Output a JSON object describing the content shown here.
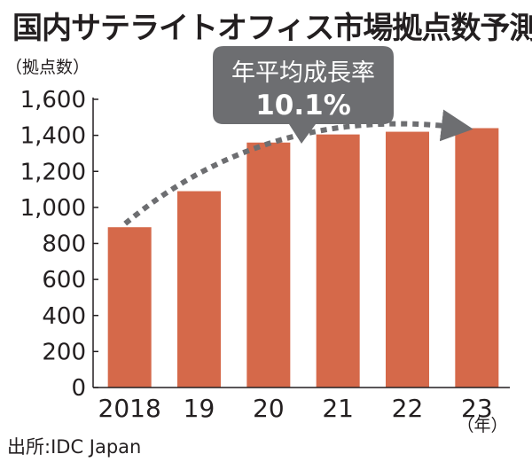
{
  "title": "国内サテライトオフィス市場拠点数予測",
  "source": "出所:IDC Japan",
  "chart_data": {
    "type": "bar",
    "title": "国内サテライトオフィス市場拠点数予測",
    "ylabel": "（拠点数）",
    "xunit": "（年）",
    "categories": [
      "2018",
      "19",
      "20",
      "21",
      "22",
      "23"
    ],
    "values": [
      890,
      1090,
      1360,
      1405,
      1420,
      1440
    ],
    "ylim": [
      0,
      1600
    ],
    "yticks": [
      "0",
      "200",
      "400",
      "600",
      "800",
      "1,000",
      "1,200",
      "1,400",
      "1,600"
    ],
    "grid": false,
    "bar_color": "#d5694a",
    "callout": {
      "label": "年平均成長率",
      "value": "10.1%",
      "color": "#6d6e71"
    }
  }
}
